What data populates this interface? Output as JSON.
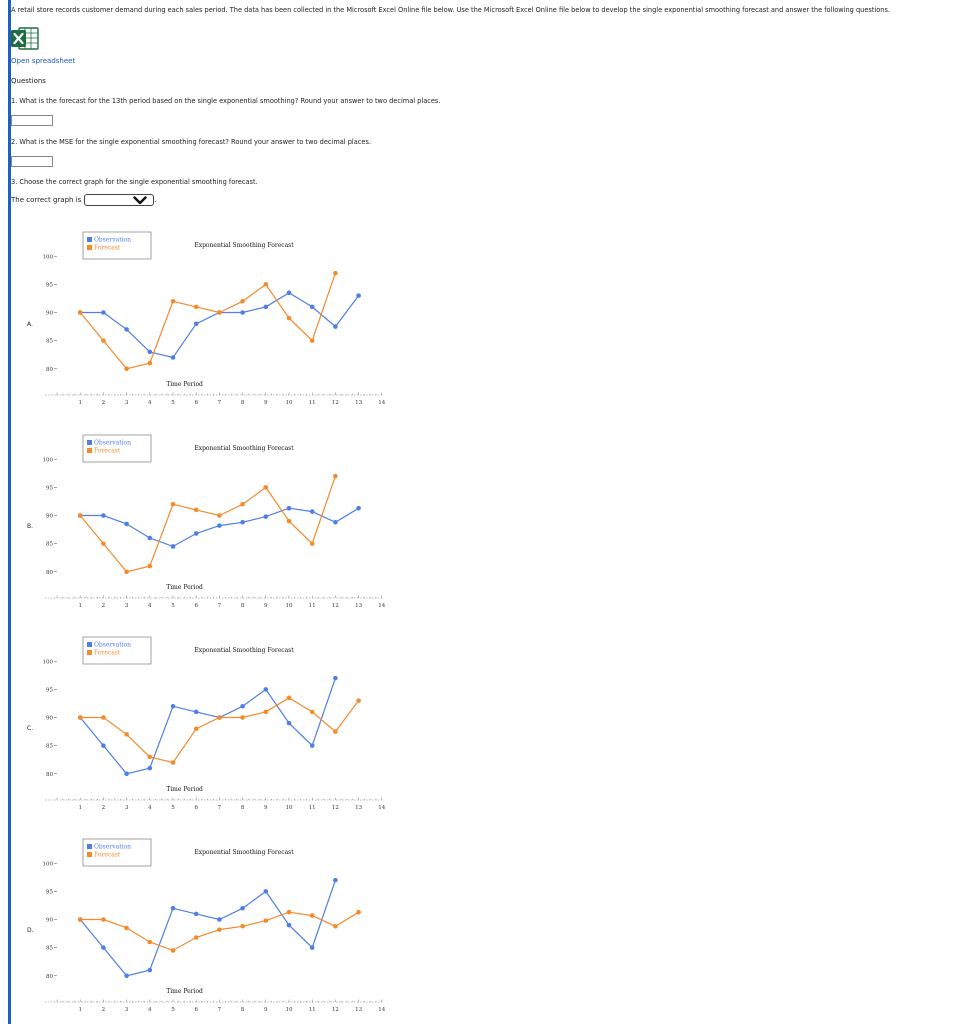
{
  "intro": "A retail store records customer demand during each sales period. The data has been collected in the Microsoft Excel Online file below. Use the Microsoft Excel Online file below to develop the single exponential smoothing forecast and answer the following questions.",
  "open_spreadsheet": "Open spreadsheet",
  "questions_heading": "Questions",
  "questions": [
    {
      "text": "1. What is the forecast for the 13th period based on the single exponential smoothing? Round your answer to two decimal places.",
      "value": ""
    },
    {
      "text": "2. What is the MSE for the single exponential smoothing forecast? Round your answer to two decimal places.",
      "value": ""
    },
    {
      "text": "3. Choose the correct graph for the single exponential smoothing forecast."
    }
  ],
  "graph_prompt": "The correct graph is",
  "graph_suffix": ".",
  "graph_selected": "",
  "colors": {
    "observation": "#4f7fe6",
    "forecast": "#f58a2b",
    "accent": "#1f5fbf",
    "link": "#1a56c4"
  },
  "icons": {
    "excel": "excel-icon",
    "dropdown": "chevron-down-icon"
  },
  "charts": [
    {
      "option": "A.",
      "chart_data": {
        "type": "line",
        "title": "Exponential Smoothing Forecast",
        "xlabel": "Time Period",
        "x_ticks": [
          1,
          2,
          3,
          4,
          5,
          6,
          7,
          8,
          9,
          10,
          11,
          12,
          13,
          14
        ],
        "y_ticks": [
          80,
          85,
          90,
          95,
          100
        ],
        "xlim": [
          0,
          14
        ],
        "ylim": [
          78,
          102
        ],
        "legend": [
          "Observation",
          "Forecast"
        ],
        "legend_position": "top-left",
        "series": [
          {
            "name": "Observation",
            "x": [
              1,
              2,
              3,
              4,
              5,
              6,
              7,
              8,
              9,
              10,
              11,
              12,
              13
            ],
            "values": [
              90,
              90,
              87,
              83,
              82,
              88,
              90,
              90,
              91,
              93.5,
              91,
              87.5,
              93
            ]
          },
          {
            "name": "Forecast",
            "x": [
              1,
              2,
              3,
              4,
              5,
              6,
              7,
              8,
              9,
              10,
              11,
              12
            ],
            "values": [
              90,
              85,
              80,
              81,
              92,
              91,
              90,
              92,
              95,
              89,
              85,
              97
            ]
          }
        ]
      }
    },
    {
      "option": "B.",
      "chart_data": {
        "type": "line",
        "title": "Exponential Smoothing Forecast",
        "xlabel": "Time Period",
        "x_ticks": [
          1,
          2,
          3,
          4,
          5,
          6,
          7,
          8,
          9,
          10,
          11,
          12,
          13,
          14
        ],
        "y_ticks": [
          80,
          85,
          90,
          95,
          100
        ],
        "xlim": [
          0,
          14
        ],
        "ylim": [
          78,
          102
        ],
        "legend": [
          "Observation",
          "Forecast"
        ],
        "legend_position": "top-left",
        "series": [
          {
            "name": "Observation",
            "x": [
              1,
              2,
              3,
              4,
              5,
              6,
              7,
              8,
              9,
              10,
              11,
              12,
              13
            ],
            "values": [
              90,
              90,
              88.5,
              86,
              84.5,
              86.8,
              88.2,
              88.8,
              89.8,
              91.3,
              90.7,
              88.8,
              91.3
            ]
          },
          {
            "name": "Forecast",
            "x": [
              1,
              2,
              3,
              4,
              5,
              6,
              7,
              8,
              9,
              10,
              11,
              12
            ],
            "values": [
              90,
              85,
              80,
              81,
              92,
              91,
              90,
              92,
              95,
              89,
              85,
              97
            ]
          }
        ]
      }
    },
    {
      "option": "C.",
      "chart_data": {
        "type": "line",
        "title": "Exponential Smoothing Forecast",
        "xlabel": "Time Period",
        "x_ticks": [
          1,
          2,
          3,
          4,
          5,
          6,
          7,
          8,
          9,
          10,
          11,
          12,
          13,
          14
        ],
        "y_ticks": [
          80,
          85,
          90,
          95,
          100
        ],
        "xlim": [
          0,
          14
        ],
        "ylim": [
          78,
          102
        ],
        "legend": [
          "Observation",
          "Forecast"
        ],
        "legend_position": "top-left",
        "series": [
          {
            "name": "Observation",
            "x": [
              1,
              2,
              3,
              4,
              5,
              6,
              7,
              8,
              9,
              10,
              11,
              12
            ],
            "values": [
              90,
              85,
              80,
              81,
              92,
              91,
              90,
              92,
              95,
              89,
              85,
              97
            ]
          },
          {
            "name": "Forecast",
            "x": [
              1,
              2,
              3,
              4,
              5,
              6,
              7,
              8,
              9,
              10,
              11,
              12,
              13
            ],
            "values": [
              90,
              90,
              87,
              83,
              82,
              88,
              90,
              90,
              91,
              93.5,
              91,
              87.5,
              93
            ]
          }
        ]
      }
    },
    {
      "option": "D.",
      "chart_data": {
        "type": "line",
        "title": "Exponential Smoothing Forecast",
        "xlabel": "Time Period",
        "x_ticks": [
          1,
          2,
          3,
          4,
          5,
          6,
          7,
          8,
          9,
          10,
          11,
          12,
          13,
          14
        ],
        "y_ticks": [
          80,
          85,
          90,
          95,
          100
        ],
        "xlim": [
          0,
          14
        ],
        "ylim": [
          78,
          102
        ],
        "legend": [
          "Observation",
          "Forecast"
        ],
        "legend_position": "top-left",
        "series": [
          {
            "name": "Observation",
            "x": [
              1,
              2,
              3,
              4,
              5,
              6,
              7,
              8,
              9,
              10,
              11,
              12
            ],
            "values": [
              90,
              85,
              80,
              81,
              92,
              91,
              90,
              92,
              95,
              89,
              85,
              97
            ]
          },
          {
            "name": "Forecast",
            "x": [
              1,
              2,
              3,
              4,
              5,
              6,
              7,
              8,
              9,
              10,
              11,
              12,
              13
            ],
            "values": [
              90,
              90,
              88.5,
              86,
              84.5,
              86.8,
              88.2,
              88.8,
              89.8,
              91.3,
              90.7,
              88.8,
              91.3
            ]
          }
        ]
      }
    }
  ]
}
